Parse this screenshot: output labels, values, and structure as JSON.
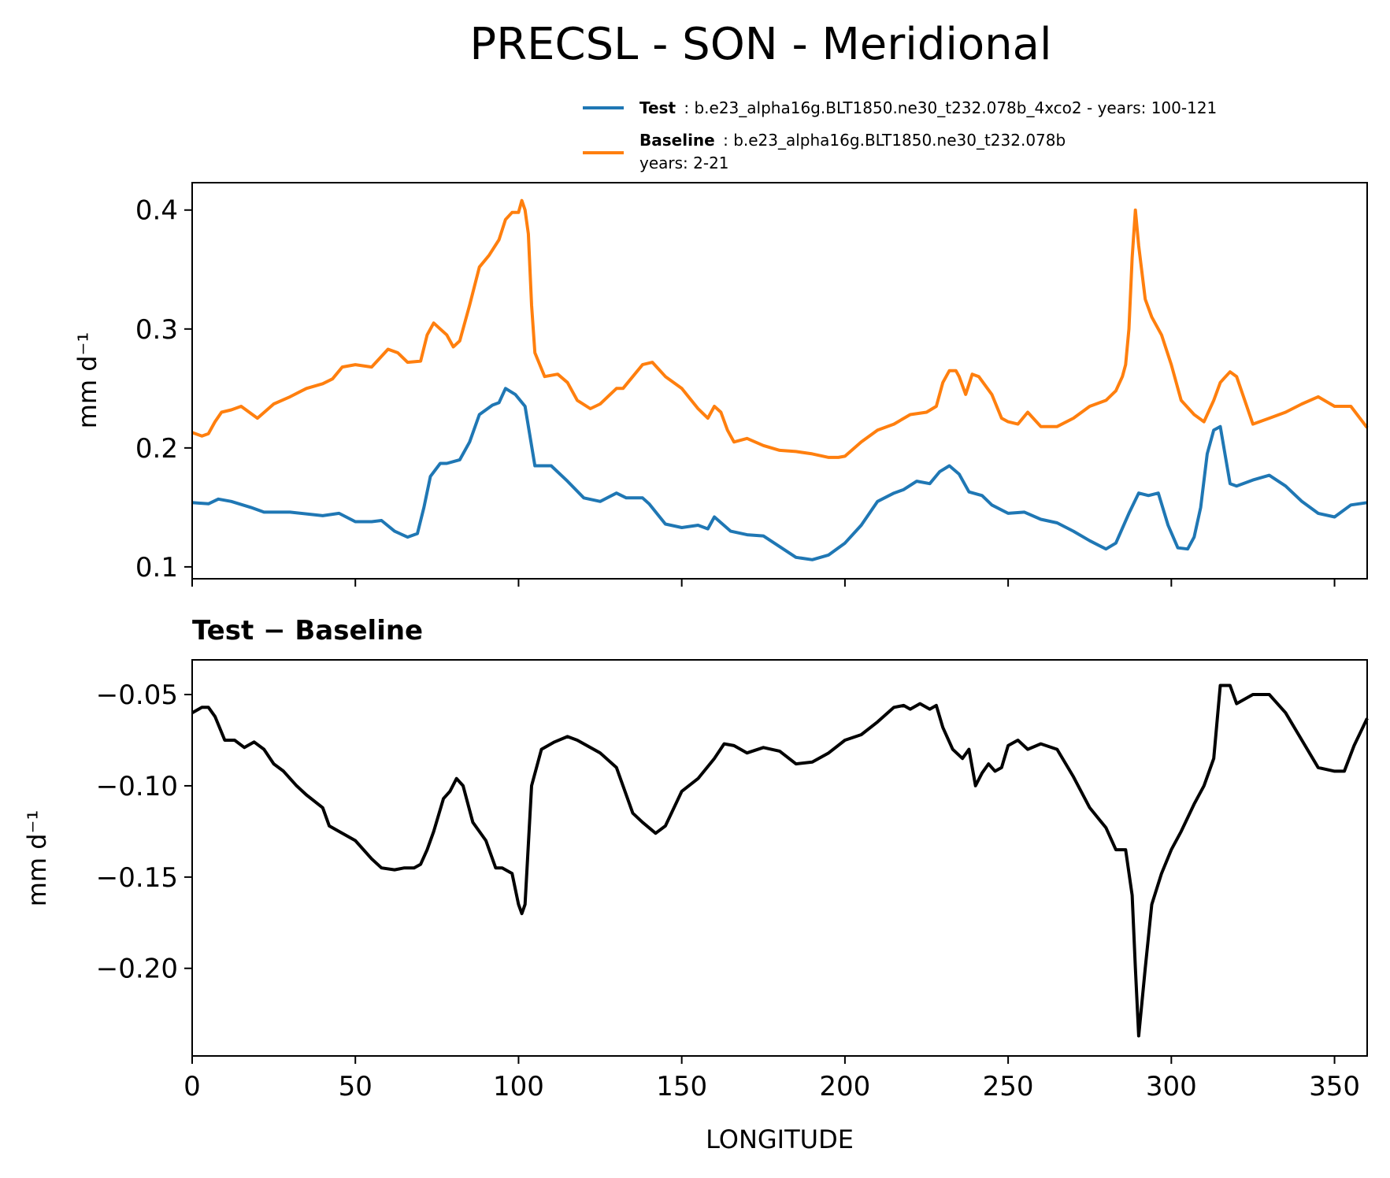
{
  "chart_data": [
    {
      "type": "line",
      "title": "PRECSL - SON - Meridional",
      "ylabel": "mm d⁻¹",
      "xlim": [
        0,
        360
      ],
      "ylim": [
        0.09,
        0.423
      ],
      "yticks": [
        0.1,
        0.2,
        0.3,
        0.4
      ],
      "yticklabels": [
        "0.1",
        "0.2",
        "0.3",
        "0.4"
      ],
      "xticks": [
        0,
        50,
        100,
        150,
        200,
        250,
        300,
        350
      ],
      "legend": {
        "position": "top-right",
        "entries": [
          {
            "name": "Test",
            "desc": ": b.e23_alpha16g.BLT1850.ne30_t232.078b_4xco2 - years: 100-121",
            "color": "#1f77b4"
          },
          {
            "name": "Baseline",
            "desc": ": b.e23_alpha16g.BLT1850.ne30_t232.078b",
            "desc2": "years: 2-21",
            "color": "#ff7f0e"
          }
        ]
      },
      "series": [
        {
          "name": "Test",
          "color": "#1f77b4",
          "x": [
            0,
            5,
            8,
            12,
            18,
            22,
            30,
            40,
            45,
            50,
            55,
            58,
            62,
            66,
            69,
            71,
            73,
            76,
            78,
            82,
            85,
            88,
            92,
            94,
            96,
            99,
            102,
            105,
            110,
            115,
            120,
            125,
            130,
            133,
            138,
            140,
            145,
            150,
            155,
            158,
            160,
            165,
            170,
            175,
            180,
            185,
            190,
            195,
            200,
            205,
            210,
            215,
            218,
            222,
            226,
            229,
            232,
            235,
            238,
            242,
            245,
            250,
            255,
            260,
            265,
            270,
            275,
            280,
            283,
            287,
            290,
            293,
            296,
            299,
            302,
            305,
            307,
            309,
            311,
            313,
            315,
            318,
            320,
            325,
            330,
            335,
            340,
            345,
            350,
            355,
            360
          ],
          "values": [
            0.154,
            0.153,
            0.157,
            0.155,
            0.15,
            0.146,
            0.146,
            0.143,
            0.145,
            0.138,
            0.138,
            0.139,
            0.13,
            0.125,
            0.128,
            0.15,
            0.176,
            0.187,
            0.187,
            0.19,
            0.205,
            0.228,
            0.236,
            0.238,
            0.25,
            0.245,
            0.235,
            0.185,
            0.185,
            0.172,
            0.158,
            0.155,
            0.162,
            0.158,
            0.158,
            0.153,
            0.136,
            0.133,
            0.135,
            0.132,
            0.142,
            0.13,
            0.127,
            0.126,
            0.117,
            0.108,
            0.106,
            0.11,
            0.12,
            0.135,
            0.155,
            0.162,
            0.165,
            0.172,
            0.17,
            0.18,
            0.185,
            0.178,
            0.163,
            0.16,
            0.152,
            0.145,
            0.146,
            0.14,
            0.137,
            0.13,
            0.122,
            0.115,
            0.12,
            0.145,
            0.162,
            0.16,
            0.162,
            0.135,
            0.116,
            0.115,
            0.125,
            0.15,
            0.195,
            0.215,
            0.218,
            0.17,
            0.168,
            0.173,
            0.177,
            0.168,
            0.155,
            0.145,
            0.142,
            0.152,
            0.154
          ]
        },
        {
          "name": "Baseline",
          "color": "#ff7f0e",
          "x": [
            0,
            3,
            5,
            7,
            9,
            12,
            15,
            20,
            25,
            30,
            35,
            40,
            43,
            46,
            50,
            55,
            60,
            63,
            66,
            70,
            72,
            74,
            76,
            78,
            80,
            82,
            85,
            88,
            91,
            94,
            96,
            98,
            100,
            101,
            102,
            103,
            104,
            105,
            108,
            112,
            115,
            118,
            122,
            125,
            130,
            132,
            135,
            138,
            141,
            145,
            150,
            155,
            158,
            160,
            162,
            164,
            166,
            170,
            175,
            180,
            185,
            190,
            195,
            198,
            200,
            205,
            210,
            215,
            220,
            225,
            228,
            230,
            232,
            234,
            235,
            237,
            239,
            241,
            245,
            248,
            250,
            253,
            256,
            260,
            265,
            270,
            275,
            280,
            283,
            285,
            286,
            287,
            288,
            289,
            290,
            292,
            294,
            297,
            300,
            303,
            307,
            310,
            313,
            315,
            316,
            318,
            320,
            325,
            330,
            335,
            340,
            345,
            350,
            355,
            360
          ],
          "values": [
            0.213,
            0.21,
            0.212,
            0.222,
            0.23,
            0.232,
            0.235,
            0.225,
            0.237,
            0.243,
            0.25,
            0.254,
            0.258,
            0.268,
            0.27,
            0.268,
            0.283,
            0.28,
            0.272,
            0.273,
            0.295,
            0.305,
            0.3,
            0.295,
            0.285,
            0.29,
            0.32,
            0.352,
            0.362,
            0.375,
            0.392,
            0.398,
            0.398,
            0.408,
            0.4,
            0.38,
            0.32,
            0.28,
            0.26,
            0.262,
            0.255,
            0.24,
            0.233,
            0.237,
            0.25,
            0.25,
            0.26,
            0.27,
            0.272,
            0.26,
            0.25,
            0.233,
            0.225,
            0.235,
            0.23,
            0.215,
            0.205,
            0.208,
            0.202,
            0.198,
            0.197,
            0.195,
            0.192,
            0.192,
            0.193,
            0.205,
            0.215,
            0.22,
            0.228,
            0.23,
            0.235,
            0.255,
            0.265,
            0.265,
            0.26,
            0.245,
            0.262,
            0.26,
            0.245,
            0.225,
            0.222,
            0.22,
            0.23,
            0.218,
            0.218,
            0.225,
            0.235,
            0.24,
            0.248,
            0.26,
            0.27,
            0.3,
            0.36,
            0.4,
            0.37,
            0.325,
            0.31,
            0.295,
            0.27,
            0.24,
            0.228,
            0.222,
            0.24,
            0.255,
            0.258,
            0.264,
            0.26,
            0.22,
            0.225,
            0.23,
            0.237,
            0.243,
            0.235,
            0.235,
            0.217
          ]
        }
      ]
    },
    {
      "type": "line",
      "title": "Test − Baseline",
      "xlabel": "LONGITUDE",
      "ylabel": "mm d⁻¹",
      "xlim": [
        0,
        360
      ],
      "ylim": [
        -0.248,
        -0.031
      ],
      "yticks": [
        -0.05,
        -0.1,
        -0.15,
        -0.2
      ],
      "yticklabels": [
        "−0.05",
        "−0.10",
        "−0.15",
        "−0.20"
      ],
      "xticks": [
        0,
        50,
        100,
        150,
        200,
        250,
        300,
        350
      ],
      "xticklabels": [
        "0",
        "50",
        "100",
        "150",
        "200",
        "250",
        "300",
        "350"
      ],
      "series": [
        {
          "name": "Test − Baseline",
          "color": "#000000",
          "x": [
            0,
            3,
            5,
            7,
            10,
            13,
            16,
            19,
            22,
            25,
            28,
            32,
            35,
            40,
            42,
            45,
            50,
            55,
            58,
            62,
            65,
            68,
            70,
            72,
            74,
            77,
            79,
            81,
            83,
            86,
            90,
            93,
            95,
            98,
            100,
            101,
            102,
            104,
            107,
            111,
            115,
            118,
            125,
            130,
            135,
            138,
            142,
            145,
            150,
            155,
            160,
            163,
            166,
            170,
            175,
            180,
            185,
            190,
            195,
            200,
            205,
            210,
            215,
            218,
            220,
            223,
            226,
            228,
            230,
            233,
            236,
            238,
            240,
            242,
            244,
            246,
            248,
            250,
            253,
            256,
            260,
            265,
            270,
            275,
            280,
            283,
            286,
            288,
            289,
            290,
            292,
            294,
            297,
            300,
            303,
            307,
            310,
            313,
            315,
            318,
            320,
            325,
            330,
            335,
            340,
            345,
            350,
            353,
            356,
            360
          ],
          "values": [
            -0.06,
            -0.057,
            -0.057,
            -0.062,
            -0.075,
            -0.075,
            -0.079,
            -0.076,
            -0.08,
            -0.088,
            -0.092,
            -0.1,
            -0.105,
            -0.112,
            -0.122,
            -0.125,
            -0.13,
            -0.14,
            -0.145,
            -0.146,
            -0.145,
            -0.145,
            -0.143,
            -0.135,
            -0.125,
            -0.107,
            -0.103,
            -0.096,
            -0.1,
            -0.12,
            -0.13,
            -0.145,
            -0.145,
            -0.148,
            -0.165,
            -0.17,
            -0.165,
            -0.1,
            -0.08,
            -0.076,
            -0.073,
            -0.075,
            -0.082,
            -0.09,
            -0.115,
            -0.12,
            -0.126,
            -0.122,
            -0.103,
            -0.096,
            -0.085,
            -0.077,
            -0.078,
            -0.082,
            -0.079,
            -0.081,
            -0.088,
            -0.087,
            -0.082,
            -0.075,
            -0.072,
            -0.065,
            -0.057,
            -0.056,
            -0.058,
            -0.055,
            -0.058,
            -0.056,
            -0.068,
            -0.08,
            -0.085,
            -0.08,
            -0.1,
            -0.093,
            -0.088,
            -0.092,
            -0.09,
            -0.078,
            -0.075,
            -0.08,
            -0.077,
            -0.08,
            -0.095,
            -0.112,
            -0.123,
            -0.135,
            -0.135,
            -0.16,
            -0.2,
            -0.237,
            -0.2,
            -0.165,
            -0.148,
            -0.135,
            -0.125,
            -0.11,
            -0.1,
            -0.085,
            -0.045,
            -0.045,
            -0.055,
            -0.05,
            -0.05,
            -0.06,
            -0.075,
            -0.09,
            -0.092,
            -0.092,
            -0.078,
            -0.063
          ]
        }
      ]
    }
  ]
}
